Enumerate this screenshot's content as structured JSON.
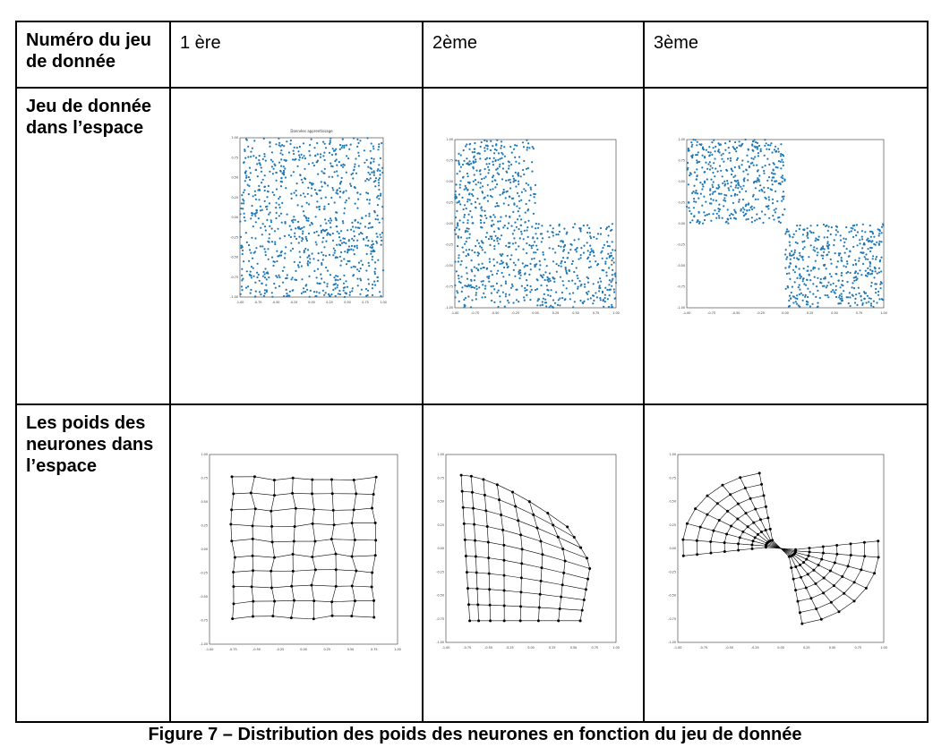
{
  "table": {
    "header_label": "Numéro du jeu de donnée",
    "columns": [
      "1 ère",
      "2ème",
      "3ème"
    ],
    "row_labels": [
      "Jeu de donnée dans l’espace",
      "Les poids des neurones dans l’espace"
    ]
  },
  "caption": "Figure 7 – Distribution des poids des neurones en fonction  du jeu de donnée",
  "chart_data": [
    {
      "type": "scatter",
      "title": "Données apprentissage",
      "description_key": "uniform-square",
      "points_color": "#1f77b4",
      "xlim": [
        -1,
        1
      ],
      "ylim": [
        -1,
        1
      ],
      "xticks": [
        "-1.00",
        "-0.75",
        "-0.50",
        "-0.25",
        "0.00",
        "0.25",
        "0.50",
        "0.75",
        "1.00"
      ],
      "yticks": [
        "1.00",
        "0.75",
        "0.50",
        "0.25",
        "0.00",
        "-0.25",
        "-0.50",
        "-0.75",
        "-1.00"
      ]
    },
    {
      "type": "scatter",
      "title": "",
      "description_key": "L-shape",
      "points_color": "#1f77b4",
      "xlim": [
        -1,
        1
      ],
      "ylim": [
        -1,
        1
      ],
      "xticks": [
        "-1.00",
        "-0.75",
        "-0.50",
        "-0.25",
        "0.00",
        "0.25",
        "0.50",
        "0.75",
        "1.00"
      ],
      "yticks": [
        "1.00",
        "0.75",
        "0.50",
        "0.25",
        "0.00",
        "-0.25",
        "-0.50",
        "-0.75",
        "-1.00"
      ]
    },
    {
      "type": "scatter",
      "title": "",
      "description_key": "two-squares",
      "points_color": "#1f77b4",
      "xlim": [
        -1,
        1
      ],
      "ylim": [
        -1,
        1
      ],
      "xticks": [
        "-1.00",
        "-0.75",
        "-0.50",
        "-0.25",
        "0.00",
        "0.25",
        "0.50",
        "0.75",
        "1.00"
      ],
      "yticks": [
        "1.00",
        "0.75",
        "0.50",
        "0.25",
        "0.00",
        "-0.25",
        "-0.50",
        "-0.75",
        "-1.00"
      ]
    },
    {
      "type": "line",
      "title": "",
      "description_key": "grid-square",
      "line_color": "#000000",
      "xlim": [
        -1,
        1
      ],
      "ylim": [
        -1,
        1
      ],
      "xticks": [
        "-1.00",
        "-0.75",
        "-0.50",
        "-0.25",
        "0.00",
        "0.25",
        "0.50",
        "0.75",
        "1.00"
      ],
      "yticks": [
        "1.00",
        "0.75",
        "0.50",
        "0.25",
        "0.00",
        "-0.25",
        "-0.50",
        "-0.75",
        "-1.00"
      ]
    },
    {
      "type": "line",
      "title": "",
      "description_key": "grid-L",
      "line_color": "#000000",
      "xlim": [
        -1,
        1
      ],
      "ylim": [
        -1,
        1
      ],
      "xticks": [
        "-1.00",
        "-0.75",
        "-0.50",
        "-0.25",
        "0.00",
        "0.25",
        "0.50",
        "0.75",
        "1.00"
      ],
      "yticks": [
        "1.00",
        "0.75",
        "0.50",
        "0.25",
        "0.00",
        "-0.25",
        "-0.50",
        "-0.75",
        "-1.00"
      ]
    },
    {
      "type": "line",
      "title": "",
      "description_key": "grid-bowtie",
      "line_color": "#000000",
      "xlim": [
        -1,
        1
      ],
      "ylim": [
        -1,
        1
      ],
      "xticks": [
        "-1.00",
        "-0.75",
        "-0.50",
        "-0.25",
        "0.00",
        "0.25",
        "0.50",
        "0.75",
        "1.00"
      ],
      "yticks": [
        "1.00",
        "0.75",
        "0.50",
        "0.25",
        "0.00",
        "-0.25",
        "-0.50",
        "-0.75",
        "-1.00"
      ]
    }
  ]
}
